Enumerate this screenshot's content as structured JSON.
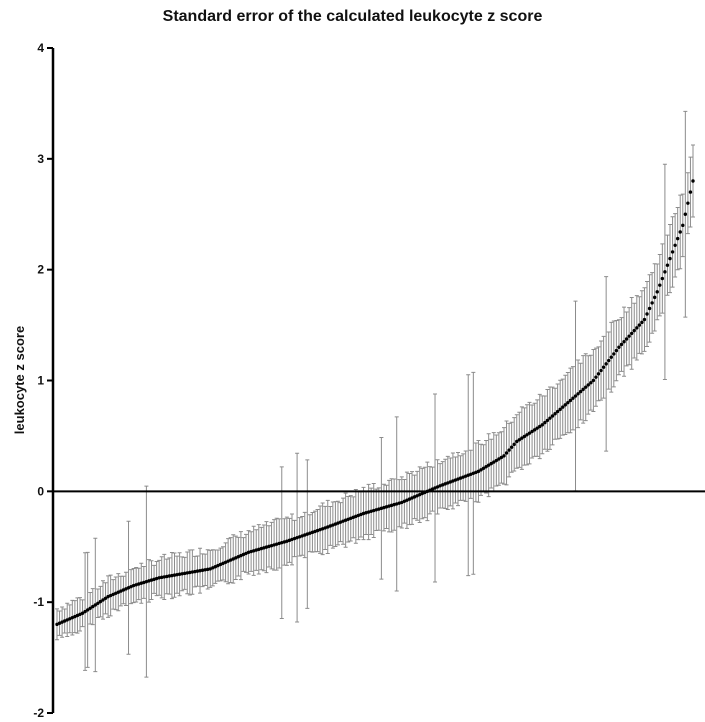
{
  "chart_data": {
    "type": "scatter",
    "title": "Standard error of the calculated leukocyte z score",
    "xlabel": "",
    "ylabel": "leukocyte z score",
    "ylim": [
      -2,
      4
    ],
    "yticks": [
      "-2",
      "-1",
      "0",
      "1",
      "2",
      "3",
      "4"
    ],
    "reference_line": 0,
    "grid": false,
    "error_bar_color": "#8c8c8c",
    "point_color": "#000000",
    "n_points": 250,
    "series": [
      {
        "values_anchor": {
          "x": [
            0,
            10,
            20,
            30,
            40,
            60,
            75,
            90,
            105,
            120,
            135,
            150,
            165,
            175,
            180,
            190,
            200,
            210,
            220,
            230,
            235,
            240,
            245,
            249
          ],
          "y": [
            -1.2,
            -1.1,
            -0.95,
            -0.85,
            -0.78,
            -0.7,
            -0.55,
            -0.45,
            -0.33,
            -0.2,
            -0.1,
            0.05,
            0.18,
            0.32,
            0.45,
            0.6,
            0.8,
            1.0,
            1.3,
            1.55,
            1.8,
            2.1,
            2.4,
            2.8
          ]
        }
      }
    ]
  }
}
